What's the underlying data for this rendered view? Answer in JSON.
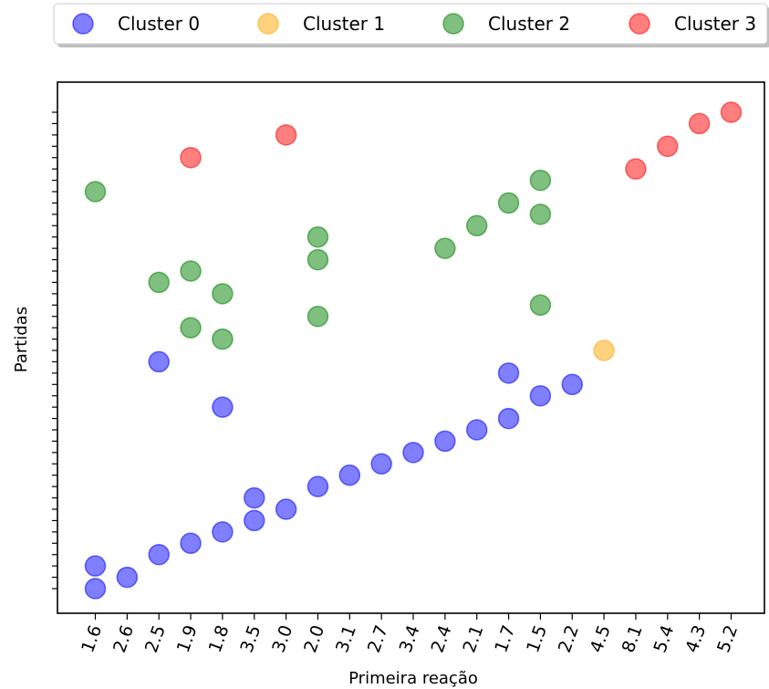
{
  "chart_data": {
    "type": "scatter",
    "title": "",
    "xlabel": "Primeira reação",
    "ylabel": "Partidas",
    "categories": [
      "1.6",
      "2.6",
      "2.5",
      "1.9",
      "1.8",
      "3.5",
      "3.0",
      "2.0",
      "3.1",
      "2.7",
      "3.4",
      "2.4",
      "2.1",
      "1.7",
      "1.5",
      "2.2",
      "4.5",
      "8.1",
      "5.4",
      "4.3",
      "5.2"
    ],
    "ylim": [
      -0.5,
      42.5
    ],
    "y_ticks_shown": false,
    "grid": false,
    "legend": {
      "placement": "top",
      "columns": 4
    },
    "series": [
      {
        "name": "Cluster 0",
        "color": "#0000ff",
        "points": [
          {
            "x": "1.6",
            "y": 0
          },
          {
            "x": "1.6",
            "y": 2
          },
          {
            "x": "2.6",
            "y": 1
          },
          {
            "x": "2.5",
            "y": 3
          },
          {
            "x": "1.9",
            "y": 4
          },
          {
            "x": "1.8",
            "y": 5
          },
          {
            "x": "3.5",
            "y": 6
          },
          {
            "x": "3.5",
            "y": 8
          },
          {
            "x": "3.0",
            "y": 7
          },
          {
            "x": "2.0",
            "y": 9
          },
          {
            "x": "3.1",
            "y": 10
          },
          {
            "x": "2.7",
            "y": 11
          },
          {
            "x": "3.4",
            "y": 12
          },
          {
            "x": "2.4",
            "y": 13
          },
          {
            "x": "2.1",
            "y": 14
          },
          {
            "x": "1.7",
            "y": 15
          },
          {
            "x": "1.5",
            "y": 17
          },
          {
            "x": "2.2",
            "y": 18
          },
          {
            "x": "1.7",
            "y": 19
          },
          {
            "x": "1.8",
            "y": 16
          },
          {
            "x": "2.5",
            "y": 20
          }
        ]
      },
      {
        "name": "Cluster 1",
        "color": "#ffa500",
        "points": [
          {
            "x": "4.5",
            "y": 21
          }
        ]
      },
      {
        "name": "Cluster 2",
        "color": "#008000",
        "points": [
          {
            "x": "1.8",
            "y": 22
          },
          {
            "x": "1.9",
            "y": 23
          },
          {
            "x": "2.0",
            "y": 24
          },
          {
            "x": "1.5",
            "y": 25
          },
          {
            "x": "1.8",
            "y": 26
          },
          {
            "x": "2.5",
            "y": 27
          },
          {
            "x": "1.9",
            "y": 28
          },
          {
            "x": "2.0",
            "y": 29
          },
          {
            "x": "2.4",
            "y": 30
          },
          {
            "x": "2.0",
            "y": 31
          },
          {
            "x": "2.1",
            "y": 32
          },
          {
            "x": "1.5",
            "y": 33
          },
          {
            "x": "1.7",
            "y": 34
          },
          {
            "x": "1.6",
            "y": 35
          },
          {
            "x": "1.5",
            "y": 36
          }
        ]
      },
      {
        "name": "Cluster 3",
        "color": "#ff0000",
        "points": [
          {
            "x": "8.1",
            "y": 37
          },
          {
            "x": "1.9",
            "y": 38
          },
          {
            "x": "5.4",
            "y": 39
          },
          {
            "x": "3.0",
            "y": 40
          },
          {
            "x": "4.3",
            "y": 41
          },
          {
            "x": "5.2",
            "y": 42
          }
        ]
      }
    ]
  }
}
